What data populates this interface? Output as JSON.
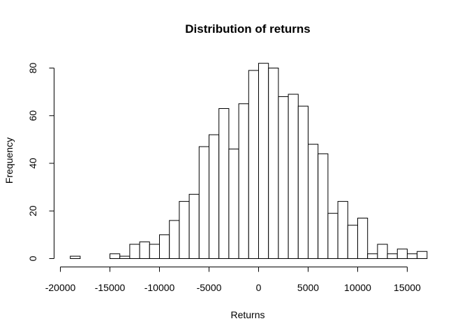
{
  "chart_data": {
    "type": "bar",
    "title": "Distribution of returns",
    "xlabel": "Returns",
    "ylabel": "Frequency",
    "xlim": [
      -20000,
      17000
    ],
    "ylim": [
      0,
      82
    ],
    "bin_width": 1000,
    "bins": [
      {
        "start": -19000,
        "end": -18000,
        "count": 1
      },
      {
        "start": -18000,
        "end": -17000,
        "count": 0
      },
      {
        "start": -17000,
        "end": -16000,
        "count": 0
      },
      {
        "start": -16000,
        "end": -15000,
        "count": 0
      },
      {
        "start": -15000,
        "end": -14000,
        "count": 2
      },
      {
        "start": -14000,
        "end": -13000,
        "count": 1
      },
      {
        "start": -13000,
        "end": -12000,
        "count": 6
      },
      {
        "start": -12000,
        "end": -11000,
        "count": 7
      },
      {
        "start": -11000,
        "end": -10000,
        "count": 6
      },
      {
        "start": -10000,
        "end": -9000,
        "count": 10
      },
      {
        "start": -9000,
        "end": -8000,
        "count": 16
      },
      {
        "start": -8000,
        "end": -7000,
        "count": 24
      },
      {
        "start": -7000,
        "end": -6000,
        "count": 27
      },
      {
        "start": -6000,
        "end": -5000,
        "count": 47
      },
      {
        "start": -5000,
        "end": -4000,
        "count": 52
      },
      {
        "start": -4000,
        "end": -3000,
        "count": 63
      },
      {
        "start": -3000,
        "end": -2000,
        "count": 46
      },
      {
        "start": -2000,
        "end": -1000,
        "count": 65
      },
      {
        "start": -1000,
        "end": 0,
        "count": 79
      },
      {
        "start": 0,
        "end": 1000,
        "count": 82
      },
      {
        "start": 1000,
        "end": 2000,
        "count": 80
      },
      {
        "start": 2000,
        "end": 3000,
        "count": 68
      },
      {
        "start": 3000,
        "end": 4000,
        "count": 69
      },
      {
        "start": 4000,
        "end": 5000,
        "count": 64
      },
      {
        "start": 5000,
        "end": 6000,
        "count": 48
      },
      {
        "start": 6000,
        "end": 7000,
        "count": 44
      },
      {
        "start": 7000,
        "end": 8000,
        "count": 19
      },
      {
        "start": 8000,
        "end": 9000,
        "count": 24
      },
      {
        "start": 9000,
        "end": 10000,
        "count": 14
      },
      {
        "start": 10000,
        "end": 11000,
        "count": 17
      },
      {
        "start": 11000,
        "end": 12000,
        "count": 2
      },
      {
        "start": 12000,
        "end": 13000,
        "count": 6
      },
      {
        "start": 13000,
        "end": 14000,
        "count": 2
      },
      {
        "start": 14000,
        "end": 15000,
        "count": 4
      },
      {
        "start": 15000,
        "end": 16000,
        "count": 2
      },
      {
        "start": 16000,
        "end": 17000,
        "count": 3
      }
    ],
    "x_ticks": [
      {
        "value": -20000,
        "label": "-20000"
      },
      {
        "value": -15000,
        "label": "-15000"
      },
      {
        "value": -10000,
        "label": "-10000"
      },
      {
        "value": -5000,
        "label": "-5000"
      },
      {
        "value": 0,
        "label": "0"
      },
      {
        "value": 5000,
        "label": "5000"
      },
      {
        "value": 10000,
        "label": "10000"
      },
      {
        "value": 15000,
        "label": "15000"
      }
    ],
    "y_ticks": [
      {
        "value": 0,
        "label": "0"
      },
      {
        "value": 20,
        "label": "20"
      },
      {
        "value": 40,
        "label": "40"
      },
      {
        "value": 60,
        "label": "60"
      },
      {
        "value": 80,
        "label": "80"
      }
    ],
    "grid": false,
    "legend": "none",
    "bar_fill": "#ffffff",
    "bar_stroke": "#000000"
  }
}
